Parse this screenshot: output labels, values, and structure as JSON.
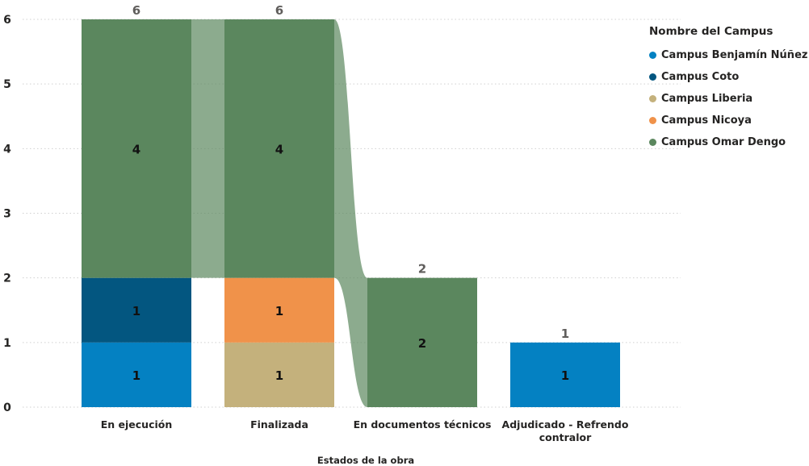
{
  "chart_data": {
    "type": "bar",
    "stacked": true,
    "ribbons": true,
    "xlabel": "Estados de la obra",
    "ylabel": "",
    "ylim": [
      0,
      6
    ],
    "yticks": [
      0,
      1,
      2,
      3,
      4,
      5,
      6
    ],
    "grid": true,
    "legend_title": "Nombre del Campus",
    "legend_position": "right",
    "categories": [
      [
        "En ejecución"
      ],
      [
        "Finalizada"
      ],
      [
        "En documentos técnicos"
      ],
      [
        "Adjudicado - Refrendo",
        "contralor"
      ]
    ],
    "totals": [
      6,
      6,
      2,
      1
    ],
    "series": [
      {
        "name": "Campus Benjamín Núñez",
        "color": "#0481c2",
        "values": [
          1,
          0,
          0,
          1
        ]
      },
      {
        "name": "Campus Coto",
        "color": "#035680",
        "values": [
          1,
          0,
          0,
          0
        ]
      },
      {
        "name": "Campus Liberia",
        "color": "#c4b17c",
        "values": [
          0,
          1,
          0,
          0
        ]
      },
      {
        "name": "Campus Nicoya",
        "color": "#f0924a",
        "values": [
          0,
          1,
          0,
          0
        ]
      },
      {
        "name": "Campus Omar Dengo",
        "color": "#5b875e",
        "values": [
          4,
          4,
          2,
          0
        ]
      }
    ]
  }
}
